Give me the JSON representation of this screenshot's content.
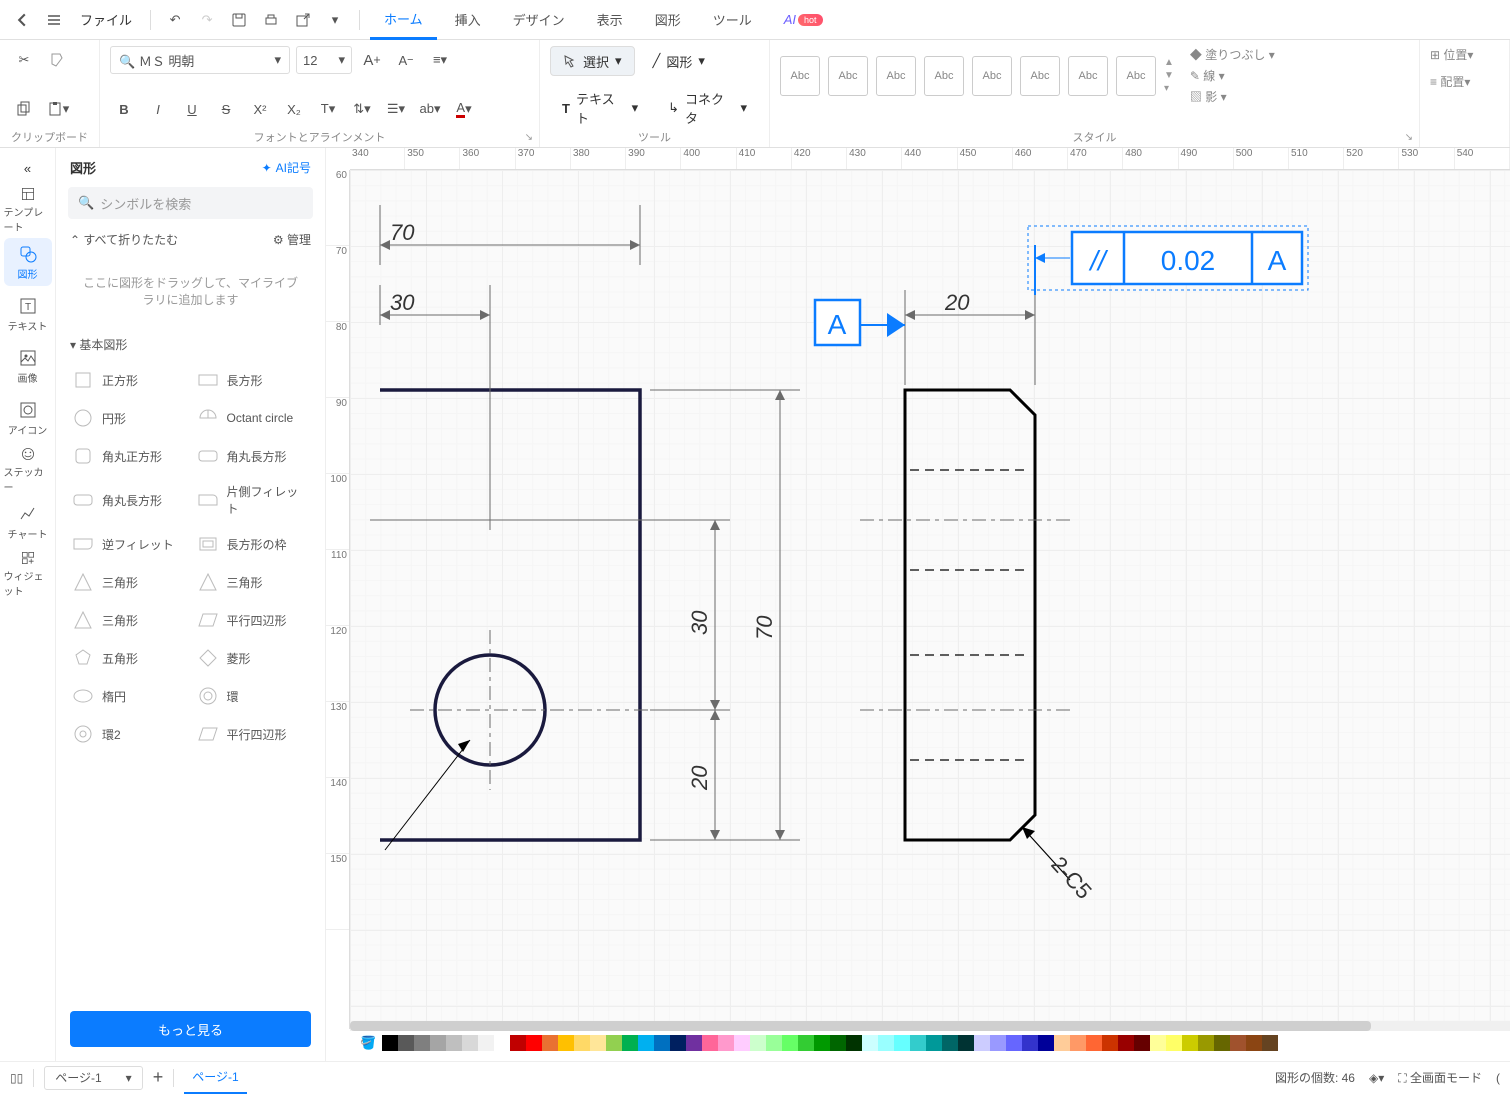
{
  "menubar": {
    "file": "ファイル",
    "tabs": [
      "ホーム",
      "挿入",
      "デザイン",
      "表示",
      "図形",
      "ツール"
    ],
    "active_tab": 0,
    "ai_label": "AI",
    "ai_badge": "hot"
  },
  "ribbon": {
    "groups": {
      "clipboard": {
        "label": "クリップボード"
      },
      "font_align": {
        "label": "フォントとアラインメント",
        "font_name": "ＭＳ 明朝",
        "font_size": "12"
      },
      "tools": {
        "label": "ツール",
        "select_label": "選択",
        "shape_label": "図形",
        "text_label": "テキスト",
        "connector_label": "コネクタ"
      },
      "style": {
        "label": "スタイル",
        "abc": "Abc",
        "fill": "塗りつぶし",
        "line": "線",
        "shadow": "影"
      },
      "arrange": {
        "position": "位置",
        "align": "配置"
      }
    }
  },
  "leftrail": {
    "items": [
      {
        "label": "テンプレート"
      },
      {
        "label": "図形",
        "active": true
      },
      {
        "label": "テキスト"
      },
      {
        "label": "画像"
      },
      {
        "label": "アイコン"
      },
      {
        "label": "ステッカー"
      },
      {
        "label": "チャート"
      },
      {
        "label": "ウィジェット"
      }
    ]
  },
  "shapes_panel": {
    "title": "図形",
    "ai_link": "AI記号",
    "search_placeholder": "シンボルを検索",
    "collapse_all": "すべて折りたたむ",
    "manage": "管理",
    "drop_zone": "ここに図形をドラッグして、マイライブラリに追加します",
    "category": "基本図形",
    "shapes": [
      [
        "正方形",
        "長方形"
      ],
      [
        "円形",
        "Octant circle"
      ],
      [
        "角丸正方形",
        "角丸長方形"
      ],
      [
        "角丸長方形",
        "片側フィレット"
      ],
      [
        "逆フィレット",
        "長方形の枠"
      ],
      [
        "三角形",
        "三角形"
      ],
      [
        "三角形",
        "平行四辺形"
      ],
      [
        "五角形",
        "菱形"
      ],
      [
        "楕円",
        "環"
      ],
      [
        "環2",
        "平行四辺形"
      ]
    ],
    "more": "もっと見る"
  },
  "ruler_h": [
    "340",
    "350",
    "360",
    "370",
    "380",
    "390",
    "400",
    "410",
    "420",
    "430",
    "440",
    "450",
    "460",
    "470",
    "480",
    "490",
    "500",
    "510",
    "520",
    "530",
    "540"
  ],
  "ruler_v": [
    "60",
    "70",
    "80",
    "90",
    "100",
    "110",
    "120",
    "130",
    "140",
    "150"
  ],
  "drawing": {
    "colors": {
      "dark_navy": "#1a1a3e",
      "black": "#000000",
      "gray_dim": "#6b6b6b",
      "blue_sel": "#0b7cff",
      "dim_text": "#333333"
    },
    "dims": {
      "d70": "70",
      "d30": "30",
      "d20_right": "20",
      "d70_v": "70",
      "d30_v": "30",
      "d20_v": "20",
      "datum_A": "A",
      "tol_sym": "//",
      "tol_val": "0.02",
      "tol_ref": "A",
      "chamfer": "2-C5"
    },
    "fonts": {
      "dim": 22,
      "tol": 28
    }
  },
  "color_swatches": [
    "#000000",
    "#595959",
    "#7f7f7f",
    "#a5a5a5",
    "#bfbfbf",
    "#d8d8d8",
    "#f2f2f2",
    "#ffffff",
    "#c00000",
    "#ff0000",
    "#e97132",
    "#ffc000",
    "#ffd966",
    "#ffe699",
    "#92d050",
    "#00b050",
    "#00b0f0",
    "#0070c0",
    "#002060",
    "#7030a0",
    "#ff6699",
    "#ff99cc",
    "#ffccff",
    "#ccffcc",
    "#99ff99",
    "#66ff66",
    "#33cc33",
    "#009900",
    "#006600",
    "#003300",
    "#ccffff",
    "#99ffff",
    "#66ffff",
    "#33cccc",
    "#009999",
    "#006666",
    "#003333",
    "#ccccff",
    "#9999ff",
    "#6666ff",
    "#3333cc",
    "#000099",
    "#ffcc99",
    "#ff9966",
    "#ff6633",
    "#cc3300",
    "#990000",
    "#660000",
    "#ffff99",
    "#ffff66",
    "#cccc00",
    "#999900",
    "#666600",
    "#a0522d",
    "#8b4513",
    "#654321"
  ],
  "statusbar": {
    "page_select": "ページ-1",
    "page_tab": "ページ-1",
    "shape_count_label": "図形の個数:",
    "shape_count": "46",
    "fullscreen": "全画面モード"
  }
}
